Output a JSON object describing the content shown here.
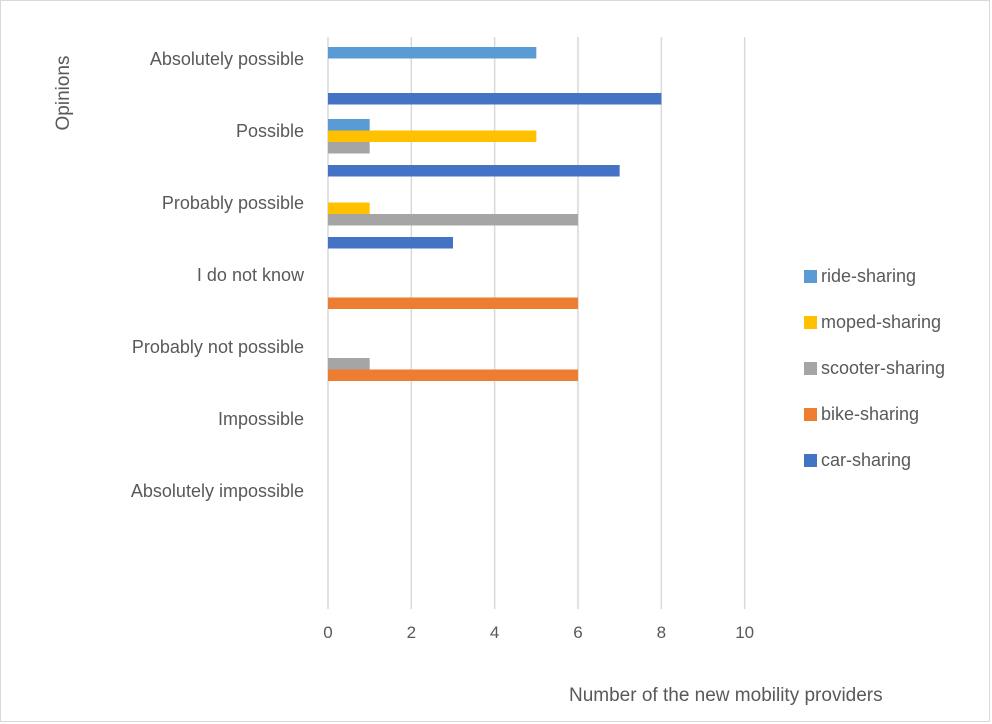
{
  "chart_data": {
    "type": "bar",
    "orientation": "horizontal",
    "title": "",
    "xlabel": "Number of the new mobility providers",
    "ylabel": "Opinions",
    "xlim": [
      0,
      10
    ],
    "x_ticks": [
      0,
      2,
      4,
      6,
      8,
      10
    ],
    "grid": "vertical",
    "legend_position": "right",
    "categories": [
      "Absolutely possible",
      "Possible",
      "Probably possible",
      "I do not know",
      "Probably not possible",
      "Impossible",
      "Absolutely impossible"
    ],
    "series": [
      {
        "name": "car-sharing",
        "color": "#4472C4",
        "values": [
          8,
          7,
          3,
          0,
          0,
          0,
          0
        ]
      },
      {
        "name": "bike-sharing",
        "color": "#ED7D31",
        "values": [
          0,
          0,
          0,
          6,
          6,
          0,
          0
        ]
      },
      {
        "name": "scooter-sharing",
        "color": "#A5A5A5",
        "values": [
          0,
          1,
          6,
          0,
          1,
          0,
          0
        ]
      },
      {
        "name": "moped-sharing",
        "color": "#FFC000",
        "values": [
          0,
          5,
          1,
          0,
          0,
          0,
          0
        ]
      },
      {
        "name": "ride-sharing",
        "color": "#5B9BD5",
        "values": [
          5,
          1,
          0,
          0,
          0,
          0,
          0
        ]
      }
    ]
  }
}
